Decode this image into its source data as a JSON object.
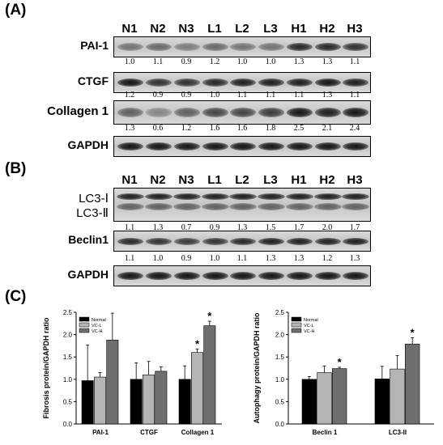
{
  "panels": {
    "A": {
      "label": "(A)",
      "lanes": [
        "N1",
        "N2",
        "N3",
        "L1",
        "L2",
        "L3",
        "H1",
        "H2",
        "H3"
      ],
      "rows": [
        {
          "name": "PAI-1",
          "ratios": [
            "1.0",
            "1.1",
            "0.9",
            "1.2",
            "1.0",
            "1.0",
            "1.3",
            "1.3",
            "1.1"
          ],
          "intensity": [
            0.45,
            0.5,
            0.4,
            0.5,
            0.45,
            0.45,
            0.85,
            0.85,
            0.8
          ]
        },
        {
          "name": "CTGF",
          "ratios": [
            "1.2",
            "0.9",
            "0.9",
            "1.0",
            "1.1",
            "1.1",
            "1.1",
            "1.3",
            "1.1"
          ],
          "intensity": [
            0.95,
            0.8,
            0.8,
            0.85,
            0.9,
            0.9,
            0.9,
            0.95,
            0.9
          ]
        },
        {
          "name": "Collagen 1",
          "ratios": [
            "1.3",
            "0.6",
            "1.2",
            "1.6",
            "1.6",
            "1.8",
            "2.5",
            "2.1",
            "2.4"
          ],
          "intensity": [
            0.55,
            0.35,
            0.55,
            0.7,
            0.7,
            0.75,
            0.95,
            0.9,
            0.95
          ]
        },
        {
          "name": "GAPDH",
          "ratios": [],
          "intensity": [
            0.95,
            0.95,
            0.95,
            0.95,
            0.95,
            0.95,
            0.95,
            0.95,
            0.95
          ]
        }
      ]
    },
    "B": {
      "label": "(B)",
      "lanes": [
        "N1",
        "N2",
        "N3",
        "L1",
        "L2",
        "L3",
        "H1",
        "H2",
        "H3"
      ],
      "lc3": {
        "label_top": "LC3-Ⅰ",
        "label_bottom": "LC3-Ⅱ",
        "ratios": [
          "1.1",
          "1.3",
          "0.7",
          "0.9",
          "1.3",
          "1.5",
          "1.7",
          "2.0",
          "1.7"
        ]
      },
      "beclin": {
        "name": "Beclin1",
        "ratios": [
          "1.1",
          "1.0",
          "0.9",
          "1.0",
          "1.1",
          "1.3",
          "1.3",
          "1.2",
          "1.3"
        ]
      },
      "gapdh": {
        "name": "GAPDH"
      }
    },
    "C": {
      "label": "(C)"
    }
  },
  "chart_data": [
    {
      "type": "bar",
      "ylabel": "Fibrosis protein/GAPDH ratio",
      "ylim": [
        0.0,
        2.5
      ],
      "yticks": [
        "0.0",
        "0.5",
        "1.0",
        "1.5",
        "2.0",
        "2.5"
      ],
      "categories": [
        "PAI-1",
        "CTGF",
        "Collagen 1"
      ],
      "legend": [
        "Normal",
        "VC-L",
        "VC-H"
      ],
      "legend_position": "top-left",
      "colors": [
        "#000000",
        "#b5b5b5",
        "#6e6e6e"
      ],
      "series": [
        {
          "name": "Normal",
          "values": [
            0.97,
            1.0,
            1.0
          ],
          "errors": [
            0.8,
            0.37,
            0.3
          ]
        },
        {
          "name": "VC-L",
          "values": [
            1.05,
            1.1,
            1.6
          ],
          "errors": [
            0.1,
            0.3,
            0.08
          ]
        },
        {
          "name": "VC-H",
          "values": [
            1.88,
            1.18,
            2.2
          ],
          "errors": [
            0.6,
            0.1,
            0.1
          ]
        }
      ],
      "annotations": [
        {
          "category": "Collagen 1",
          "series": "VC-L",
          "text": "*"
        },
        {
          "category": "Collagen 1",
          "series": "VC-H",
          "text": "*"
        }
      ]
    },
    {
      "type": "bar",
      "ylabel": "Autophagy protein/GAPDH ratio",
      "ylim": [
        0.0,
        2.5
      ],
      "yticks": [
        "0.0",
        "0.5",
        "1.0",
        "1.5",
        "2.0",
        "2.5"
      ],
      "categories": [
        "Beclin 1",
        "LC3-II"
      ],
      "legend": [
        "Normal",
        "VC-L",
        "VC-H"
      ],
      "legend_position": "top-left",
      "colors": [
        "#000000",
        "#b5b5b5",
        "#6e6e6e"
      ],
      "series": [
        {
          "name": "Normal",
          "values": [
            1.0,
            1.01
          ],
          "errors": [
            0.06,
            0.28
          ]
        },
        {
          "name": "VC-L",
          "values": [
            1.15,
            1.23
          ],
          "errors": [
            0.15,
            0.3
          ]
        },
        {
          "name": "VC-H",
          "values": [
            1.24,
            1.79
          ],
          "errors": [
            0.03,
            0.14
          ]
        }
      ],
      "annotations": [
        {
          "category": "Beclin 1",
          "series": "VC-H",
          "text": "*"
        },
        {
          "category": "LC3-II",
          "series": "VC-H",
          "text": "*"
        }
      ]
    }
  ]
}
